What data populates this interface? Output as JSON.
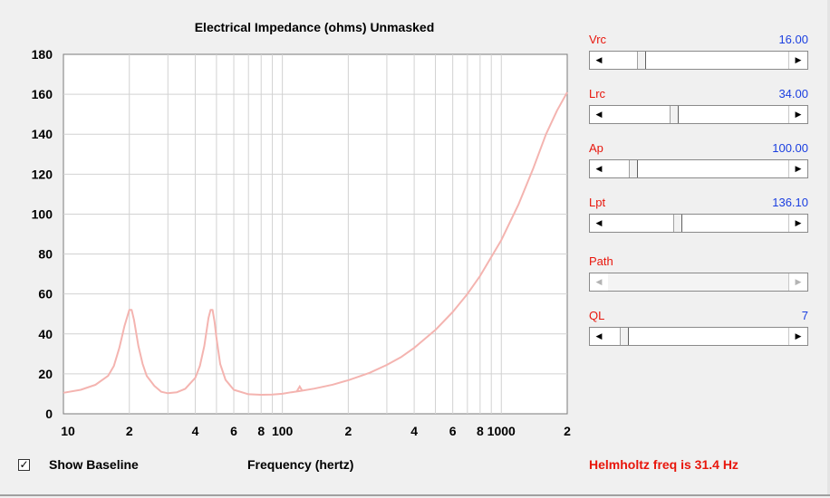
{
  "chart": {
    "title": "Electrical Impedance (ohms)   Unmasked",
    "xlabel": "Frequency (hertz)",
    "yticks": [
      "0",
      "20",
      "40",
      "60",
      "80",
      "100",
      "120",
      "140",
      "160",
      "180"
    ],
    "xticks": [
      "10",
      "2",
      "4",
      "6",
      "8",
      "100",
      "2",
      "4",
      "6",
      "8",
      "1000",
      "2"
    ],
    "curve_color": "#f4b4b0"
  },
  "chart_data": {
    "type": "line",
    "title": "Electrical Impedance (ohms)   Unmasked",
    "xlabel": "Frequency (hertz)",
    "ylabel": "",
    "xscale": "log",
    "xlim": [
      10,
      2000
    ],
    "ylim": [
      0,
      180
    ],
    "grid": true,
    "series": [
      {
        "x": [
          10,
          12,
          14,
          16,
          17,
          18,
          19,
          20,
          20.5,
          21,
          22,
          23,
          24,
          26,
          28,
          30,
          33,
          36,
          40,
          42,
          44,
          46,
          47,
          48,
          49,
          50,
          52,
          55,
          60,
          70,
          80,
          90,
          100,
          110,
          120,
          140,
          170,
          200,
          250,
          300,
          350,
          400,
          500,
          600,
          700,
          800,
          1000,
          1200,
          1400,
          1600,
          1800,
          2000
        ],
        "values": [
          10.5,
          12,
          14.5,
          19,
          24,
          33,
          44,
          52,
          52,
          47,
          34,
          25,
          19,
          14,
          11,
          10.3,
          10.8,
          12.5,
          18,
          24,
          34,
          48,
          52,
          52,
          46,
          38,
          25,
          17,
          12,
          9.8,
          9.5,
          9.6,
          10,
          10.8,
          11.4,
          12.6,
          14.6,
          16.8,
          20.5,
          24.5,
          28.5,
          33,
          42,
          51,
          60,
          69,
          87,
          105,
          123,
          140,
          152,
          161
        ]
      }
    ]
  },
  "sliders": [
    {
      "label": "Vrc",
      "value": "16.00",
      "position": 0.17,
      "enabled": true
    },
    {
      "label": "Lrc",
      "value": "34.00",
      "position": 0.36,
      "enabled": true
    },
    {
      "label": "Ap",
      "value": "100.00",
      "position": 0.12,
      "enabled": true
    },
    {
      "label": "Lpt",
      "value": "136.10",
      "position": 0.38,
      "enabled": true
    },
    {
      "label": "Path",
      "value": "",
      "position": 0.0,
      "enabled": false
    },
    {
      "label": "QL",
      "value": "7",
      "position": 0.07,
      "enabled": true
    }
  ],
  "baseline": {
    "label": "Show Baseline",
    "checked": true
  },
  "status": {
    "text": "Helmholtz freq is 31.4 Hz"
  },
  "colors": {
    "accent_red": "#e8160c",
    "value_blue": "#1a3ee0",
    "curve": "#f4b4b0",
    "grid": "#d2d2d2"
  }
}
